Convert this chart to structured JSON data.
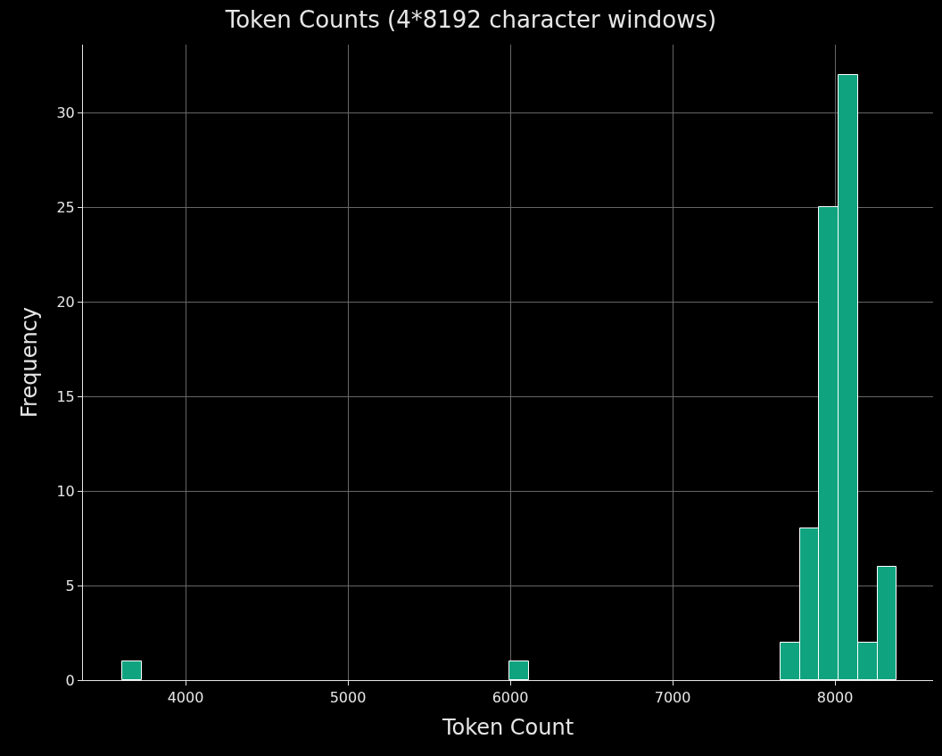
{
  "chart_data": {
    "type": "histogram",
    "title": "Token Counts (4*8192 character windows)",
    "xlabel": "Token Count",
    "ylabel": "Frequency",
    "bins": [
      3610,
      3729.25,
      3848.5,
      3967.75,
      4087,
      4206.25,
      4325.5,
      4444.75,
      4564,
      4683.25,
      4802.5,
      4921.75,
      5041,
      5160.25,
      5279.5,
      5398.75,
      5518,
      5637.25,
      5756.5,
      5875.75,
      5995,
      6114.25,
      6233.5,
      6352.75,
      6472,
      6591.25,
      6710.5,
      6829.75,
      6949,
      7068.25,
      7187.5,
      7306.75,
      7426,
      7545.25,
      7664.5,
      7783.75,
      7903,
      8022.25,
      8141.5,
      8260.75,
      8380
    ],
    "values": [
      1,
      0,
      0,
      0,
      0,
      0,
      0,
      0,
      0,
      0,
      0,
      0,
      0,
      0,
      0,
      0,
      0,
      0,
      0,
      0,
      1,
      0,
      0,
      0,
      0,
      0,
      0,
      0,
      0,
      0,
      0,
      0,
      0,
      0,
      2,
      8,
      25,
      32,
      2,
      6
    ],
    "color": "#10a37f",
    "xlim": [
      3368,
      8604
    ],
    "ylim": [
      0,
      33.6
    ],
    "xticks": [
      4000,
      5000,
      6000,
      7000,
      8000
    ],
    "yticks": [
      0,
      5,
      10,
      15,
      20,
      25,
      30
    ],
    "grid": true
  }
}
